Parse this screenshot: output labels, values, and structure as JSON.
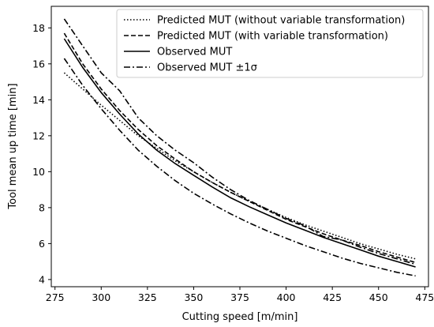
{
  "chart_data": {
    "type": "line",
    "xlabel": "Cutting speed [m/min]",
    "ylabel": "Tool mean up time [min]",
    "xlim": [
      273,
      477
    ],
    "ylim": [
      3.6,
      19.2
    ],
    "xticks": [
      275,
      300,
      325,
      350,
      375,
      400,
      425,
      450,
      475
    ],
    "yticks": [
      4,
      6,
      8,
      10,
      12,
      14,
      16,
      18
    ],
    "grid": false,
    "legend_position": "top-right",
    "series": [
      {
        "name": "Predicted MUT (without variable transformation)",
        "style": "dotted",
        "x": [
          280,
          290,
          300,
          310,
          320,
          330,
          340,
          350,
          360,
          370,
          380,
          390,
          400,
          410,
          420,
          430,
          440,
          450,
          460,
          470
        ],
        "y": [
          15.5,
          14.6,
          13.7,
          12.85,
          12.0,
          11.3,
          10.6,
          10.0,
          9.4,
          8.85,
          8.35,
          7.9,
          7.45,
          7.05,
          6.7,
          6.35,
          6.0,
          5.7,
          5.4,
          5.15
        ]
      },
      {
        "name": "Predicted MUT (with variable transformation)",
        "style": "dashed",
        "x": [
          280,
          290,
          300,
          310,
          320,
          330,
          340,
          350,
          360,
          370,
          380,
          390,
          400,
          410,
          420,
          430,
          440,
          450,
          460,
          470
        ],
        "y": [
          17.7,
          16.0,
          14.6,
          13.4,
          12.35,
          11.45,
          10.7,
          10.0,
          9.4,
          8.85,
          8.35,
          7.85,
          7.35,
          6.95,
          6.55,
          6.2,
          5.9,
          5.55,
          5.25,
          4.95
        ]
      },
      {
        "name": "Observed MUT",
        "style": "solid",
        "x": [
          280,
          290,
          300,
          310,
          320,
          330,
          340,
          350,
          360,
          370,
          380,
          390,
          400,
          410,
          420,
          430,
          440,
          450,
          460,
          470
        ],
        "y": [
          17.4,
          15.8,
          14.4,
          13.2,
          12.1,
          11.2,
          10.45,
          9.8,
          9.15,
          8.55,
          8.05,
          7.6,
          7.15,
          6.75,
          6.35,
          6.0,
          5.65,
          5.3,
          5.0,
          4.7
        ]
      },
      {
        "name": "Observed MUT ±1σ (upper)",
        "legend": false,
        "style": "dashdot",
        "x": [
          280,
          290,
          300,
          310,
          320,
          330,
          340,
          350,
          360,
          370,
          380,
          390,
          400,
          410,
          420,
          430,
          440,
          450,
          460,
          470
        ],
        "y": [
          18.5,
          17.0,
          15.5,
          14.5,
          13.0,
          12.0,
          11.2,
          10.5,
          9.7,
          9.0,
          8.4,
          7.9,
          7.4,
          7.0,
          6.4,
          6.2,
          5.8,
          5.45,
          5.15,
          4.85
        ]
      },
      {
        "name": "Observed MUT ±1σ (lower)",
        "legend": false,
        "style": "dashdot",
        "x": [
          280,
          290,
          300,
          310,
          320,
          330,
          340,
          350,
          360,
          370,
          380,
          390,
          400,
          410,
          420,
          430,
          440,
          450,
          460,
          470
        ],
        "y": [
          16.3,
          14.8,
          13.5,
          12.3,
          11.2,
          10.3,
          9.5,
          8.8,
          8.2,
          7.65,
          7.15,
          6.7,
          6.3,
          5.9,
          5.55,
          5.2,
          4.9,
          4.65,
          4.4,
          4.2
        ]
      }
    ],
    "legend_entries": [
      {
        "label": "Predicted MUT (without variable transformation)",
        "style": "dotted"
      },
      {
        "label": "Predicted MUT (with variable transformation)",
        "style": "dashed"
      },
      {
        "label": "Observed MUT",
        "style": "solid"
      },
      {
        "label": "Observed MUT ±1σ",
        "style": "dashdot"
      }
    ]
  }
}
